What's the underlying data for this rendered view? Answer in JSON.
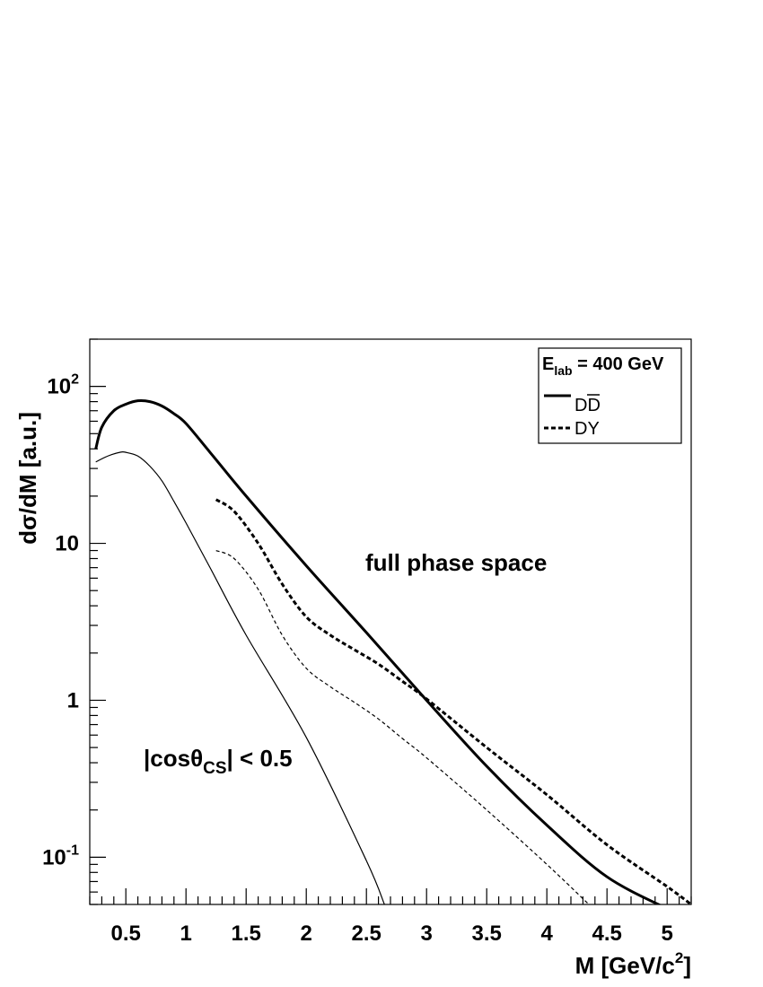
{
  "chart_data": {
    "type": "line",
    "xlabel": "M [GeV/c",
    "xlabel_sup": "2",
    "xlabel_close": "]",
    "ylabel": "dσ/dM [a.u.]",
    "xlim": [
      0.2,
      5.2
    ],
    "ylim": [
      0.05,
      200
    ],
    "yscale": "log",
    "x_ticks": [
      {
        "v": 0.5,
        "label": "0.5"
      },
      {
        "v": 1,
        "label": "1"
      },
      {
        "v": 1.5,
        "label": "1.5"
      },
      {
        "v": 2,
        "label": "2"
      },
      {
        "v": 2.5,
        "label": "2.5"
      },
      {
        "v": 3,
        "label": "3"
      },
      {
        "v": 3.5,
        "label": "3.5"
      },
      {
        "v": 4,
        "label": "4"
      },
      {
        "v": 4.5,
        "label": "4.5"
      },
      {
        "v": 5,
        "label": "5"
      }
    ],
    "y_ticks": [
      {
        "v": 0.1,
        "base": "10",
        "exp": "-1"
      },
      {
        "v": 1,
        "base": "1",
        "exp": ""
      },
      {
        "v": 10,
        "base": "10",
        "exp": ""
      },
      {
        "v": 100,
        "base": "10",
        "exp": "2"
      }
    ],
    "legend": {
      "title_base": "E",
      "title_sub": "lab",
      "title_rest": " = 400 GeV",
      "position": "top-right",
      "entries": [
        {
          "label": "DD",
          "overline": "D",
          "style": "solid"
        },
        {
          "label": "DY",
          "style": "dashed"
        }
      ]
    },
    "annotations": {
      "full": "full phase space",
      "cut_pre": "|cosθ",
      "cut_sub": "CS",
      "cut_post": "| < 0.5"
    },
    "series": [
      {
        "name": "DD",
        "style": "solid",
        "width": 3,
        "x": [
          0.25,
          0.3,
          0.4,
          0.5,
          0.6,
          0.7,
          0.8,
          0.9,
          1.0,
          1.2,
          1.5,
          2.0,
          2.5,
          3.0,
          3.5,
          4.0,
          4.5,
          5.0
        ],
        "y": [
          40,
          55,
          70,
          77,
          81,
          80,
          75,
          67,
          58,
          38,
          20,
          7.2,
          2.7,
          1.0,
          0.38,
          0.16,
          0.075,
          0.047
        ]
      },
      {
        "name": "",
        "style": "solid",
        "width": 1.2,
        "x": [
          0.25,
          0.35,
          0.45,
          0.5,
          0.6,
          0.7,
          0.8,
          0.9,
          1.0,
          1.2,
          1.5,
          2.0,
          2.5,
          2.65
        ],
        "y": [
          33,
          36,
          38,
          38,
          36,
          31,
          25,
          18.5,
          13.5,
          7.0,
          2.6,
          0.58,
          0.095,
          0.05
        ]
      },
      {
        "name": "DY",
        "style": "dashed",
        "width": 3,
        "x": [
          1.25,
          1.4,
          1.6,
          1.8,
          2.0,
          2.2,
          2.4,
          2.6,
          2.8,
          3.0,
          3.5,
          4.0,
          4.5,
          5.0,
          5.2
        ],
        "y": [
          19,
          16,
          10,
          5.5,
          3.4,
          2.6,
          2.1,
          1.7,
          1.32,
          1.02,
          0.5,
          0.25,
          0.12,
          0.065,
          0.05
        ]
      },
      {
        "name": "",
        "style": "dashed",
        "width": 1.2,
        "x": [
          1.25,
          1.4,
          1.6,
          1.8,
          2.0,
          2.2,
          2.4,
          2.6,
          2.8,
          3.0,
          3.5,
          4.0,
          4.35
        ],
        "y": [
          9.0,
          8.0,
          5.1,
          2.6,
          1.6,
          1.22,
          0.97,
          0.76,
          0.57,
          0.43,
          0.2,
          0.09,
          0.05
        ]
      }
    ]
  }
}
